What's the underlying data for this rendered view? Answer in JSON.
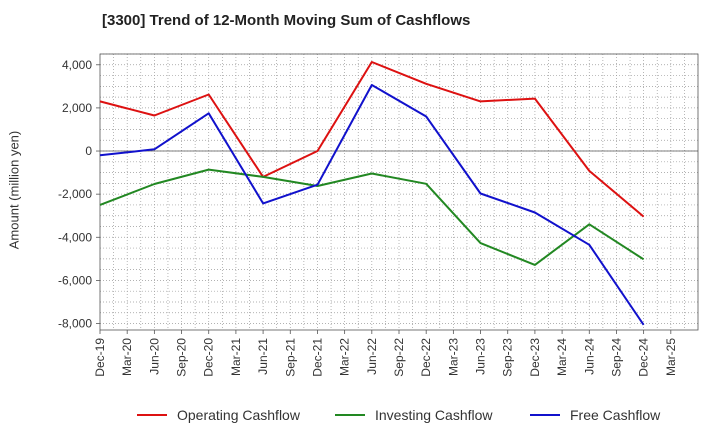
{
  "chart_data": {
    "type": "line",
    "title": "[3300]  Trend of 12-Month Moving Sum of Cashflows",
    "ylabel": "Amount (million yen)",
    "xlabel": "",
    "x_ticks": [
      "Dec-19",
      "Mar-20",
      "Jun-20",
      "Sep-20",
      "Dec-20",
      "Mar-21",
      "Jun-21",
      "Sep-21",
      "Dec-21",
      "Mar-22",
      "Jun-22",
      "Sep-22",
      "Dec-22",
      "Mar-23",
      "Jun-23",
      "Sep-23",
      "Dec-23",
      "Mar-24",
      "Jun-24",
      "Sep-24",
      "Dec-24",
      "Mar-25"
    ],
    "y_ticks": [
      "4,000",
      "2,000",
      "0",
      "-2,000",
      "-4,000",
      "-6,000",
      "-8,000"
    ],
    "y_tick_values": [
      4000,
      2000,
      0,
      -2000,
      -4000,
      -6000,
      -8000
    ],
    "ylim": [
      -8300,
      4500
    ],
    "grid": true,
    "legend_position": "bottom",
    "series": [
      {
        "name": "Operating Cashflow",
        "color": "#dd1111",
        "points": [
          [
            "Dec-19",
            2300
          ],
          [
            "Jun-20",
            1650
          ],
          [
            "Dec-20",
            2620
          ],
          [
            "Jun-21",
            -1200
          ],
          [
            "Dec-21",
            0
          ],
          [
            "Jun-22",
            4130
          ],
          [
            "Dec-22",
            3120
          ],
          [
            "Jun-23",
            2300
          ],
          [
            "Dec-23",
            2430
          ],
          [
            "Jun-24",
            -920
          ],
          [
            "Dec-24",
            -3040
          ]
        ]
      },
      {
        "name": "Investing Cashflow",
        "color": "#228822",
        "points": [
          [
            "Dec-19",
            -2500
          ],
          [
            "Jun-20",
            -1530
          ],
          [
            "Dec-20",
            -860
          ],
          [
            "Jun-21",
            -1200
          ],
          [
            "Dec-21",
            -1620
          ],
          [
            "Jun-22",
            -1040
          ],
          [
            "Dec-22",
            -1520
          ],
          [
            "Jun-23",
            -4270
          ],
          [
            "Dec-23",
            -5280
          ],
          [
            "Jun-24",
            -3400
          ],
          [
            "Dec-24",
            -5020
          ]
        ]
      },
      {
        "name": "Free Cashflow",
        "color": "#1111cc",
        "points": [
          [
            "Dec-19",
            -200
          ],
          [
            "Jun-20",
            80
          ],
          [
            "Dec-20",
            1750
          ],
          [
            "Jun-21",
            -2430
          ],
          [
            "Dec-21",
            -1560
          ],
          [
            "Jun-22",
            3060
          ],
          [
            "Dec-22",
            1600
          ],
          [
            "Jun-23",
            -1970
          ],
          [
            "Dec-23",
            -2850
          ],
          [
            "Jun-24",
            -4350
          ],
          [
            "Dec-24",
            -8060
          ]
        ]
      }
    ]
  }
}
